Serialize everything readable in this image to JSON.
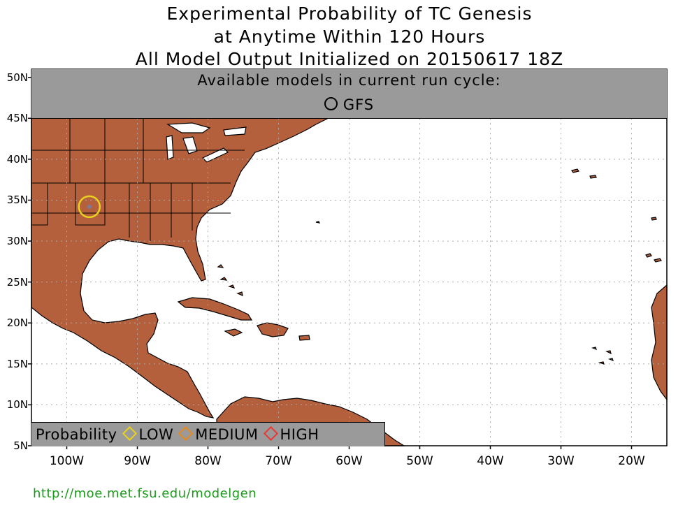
{
  "title": {
    "line1": "Experimental Probability of TC Genesis",
    "line2": "at Anytime Within 120 Hours",
    "line3": "All Model Output Initialized on 20150617 18Z"
  },
  "models_panel": {
    "heading": "Available models in current run cycle:",
    "model": "GFS"
  },
  "legend": {
    "label": "Probability",
    "levels": [
      {
        "name": "LOW",
        "color": "#e8d21e"
      },
      {
        "name": "MEDIUM",
        "color": "#e8891e"
      },
      {
        "name": "HIGH",
        "color": "#e83838"
      }
    ]
  },
  "axes": {
    "lat_labels": [
      "50N",
      "45N",
      "40N",
      "35N",
      "30N",
      "25N",
      "20N",
      "15N",
      "10N",
      "5N"
    ],
    "lon_labels": [
      "100W",
      "90W",
      "80W",
      "70W",
      "60W",
      "50W",
      "40W",
      "30W",
      "20W"
    ]
  },
  "genesis_marker": {
    "model": "GFS",
    "lat": 34.2,
    "lon": -96.8,
    "level": "LOW"
  },
  "colors": {
    "land": "#b5603c",
    "ocean": "#ffffff",
    "panel": "#9a9a9a",
    "link": "#1a9a1a"
  },
  "footer": {
    "url": "http://moe.met.fsu.edu/modelgen"
  }
}
